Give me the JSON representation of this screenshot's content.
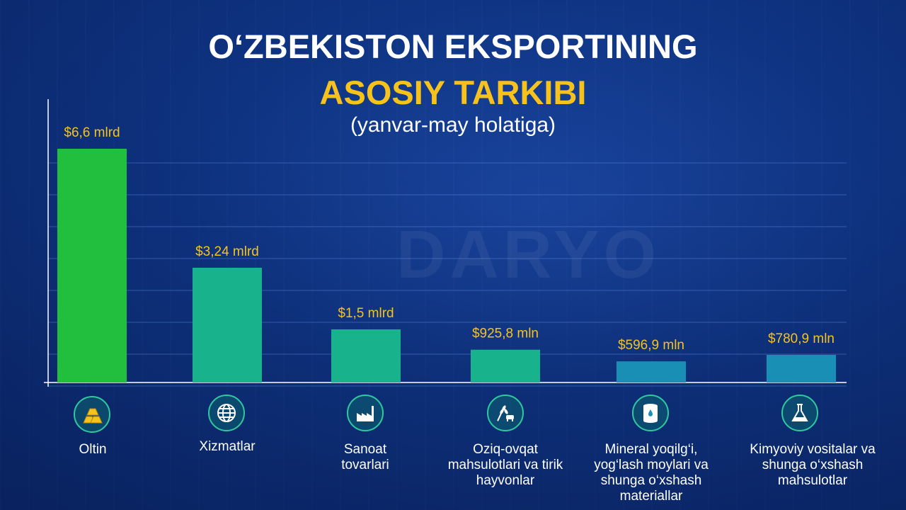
{
  "header": {
    "line1": "O‘ZBEKISTON EKSPORTINING",
    "line2": "ASOSIY TARKIBI",
    "line3": "(yanvar-may holatiga)"
  },
  "watermark": "DARYO",
  "colors": {
    "accent": "#f6c21b",
    "bar_green": "#22bf3f",
    "bar_teal": "#18b28c",
    "bar_blue": "#1a8fb5",
    "icon_ring": "#2fc9a0"
  },
  "chart_data": {
    "type": "bar",
    "unit": "mlrd USD",
    "categories": [
      "Oltin",
      "Xizmatlar",
      "Sanoat tovarlari",
      "Oziq-ovqat mahsulotlari va tirik hayvonlar",
      "Mineral yoqilg‘i, yog‘lash moylari va shunga o‘xshash materiallar",
      "Kimyoviy vositalar va shunga o‘xshash mahsulotlar"
    ],
    "values": [
      6.6,
      3.24,
      1.5,
      0.9258,
      0.5969,
      0.7809
    ],
    "value_labels": [
      "$6,6 mlrd",
      "$3,24 mlrd",
      "$1,5 mlrd",
      "$925,8 mln",
      "$596,9 mln",
      "$780,9 mln"
    ],
    "icons": [
      "gold-bars-icon",
      "globe-icon",
      "factory-icon",
      "wheat-cow-icon",
      "oil-barrel-icon",
      "chemical-flask-icon"
    ],
    "grid": true
  }
}
